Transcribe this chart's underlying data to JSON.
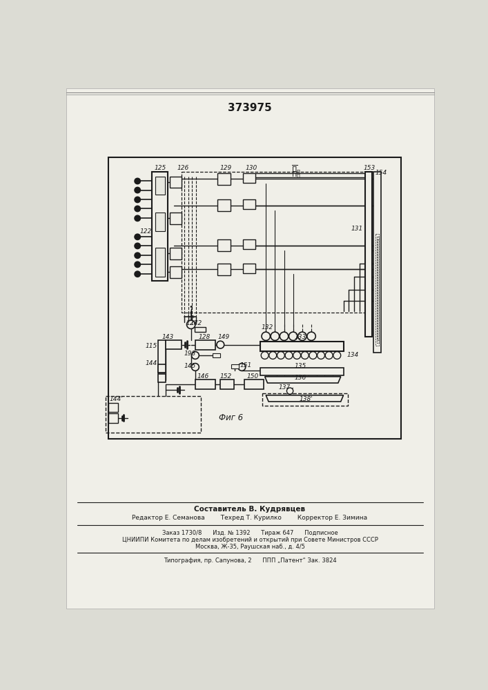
{
  "title": "373975",
  "fig_label": "Фиг 6",
  "bg_color": "#e8e8e0",
  "line_color": "#1a1a1a",
  "footer_lines": [
    "Составитель В. Кудрявцев",
    "Редактор Е. Семанова        Техред Т. Курилко        Корректор Е. Зимина",
    "Заказ 1730/8      Изд. № 1392      Тираж 647      Подписное",
    "ЦНИИПИ Комитета по делам изобретений и открытий при Совете Министров СССР",
    "Москва, Ж-35, Раушская наб., д. 4/5",
    "Типография, пр. Сапунова, 2      ППП „Патент“ Зак. 3824"
  ]
}
